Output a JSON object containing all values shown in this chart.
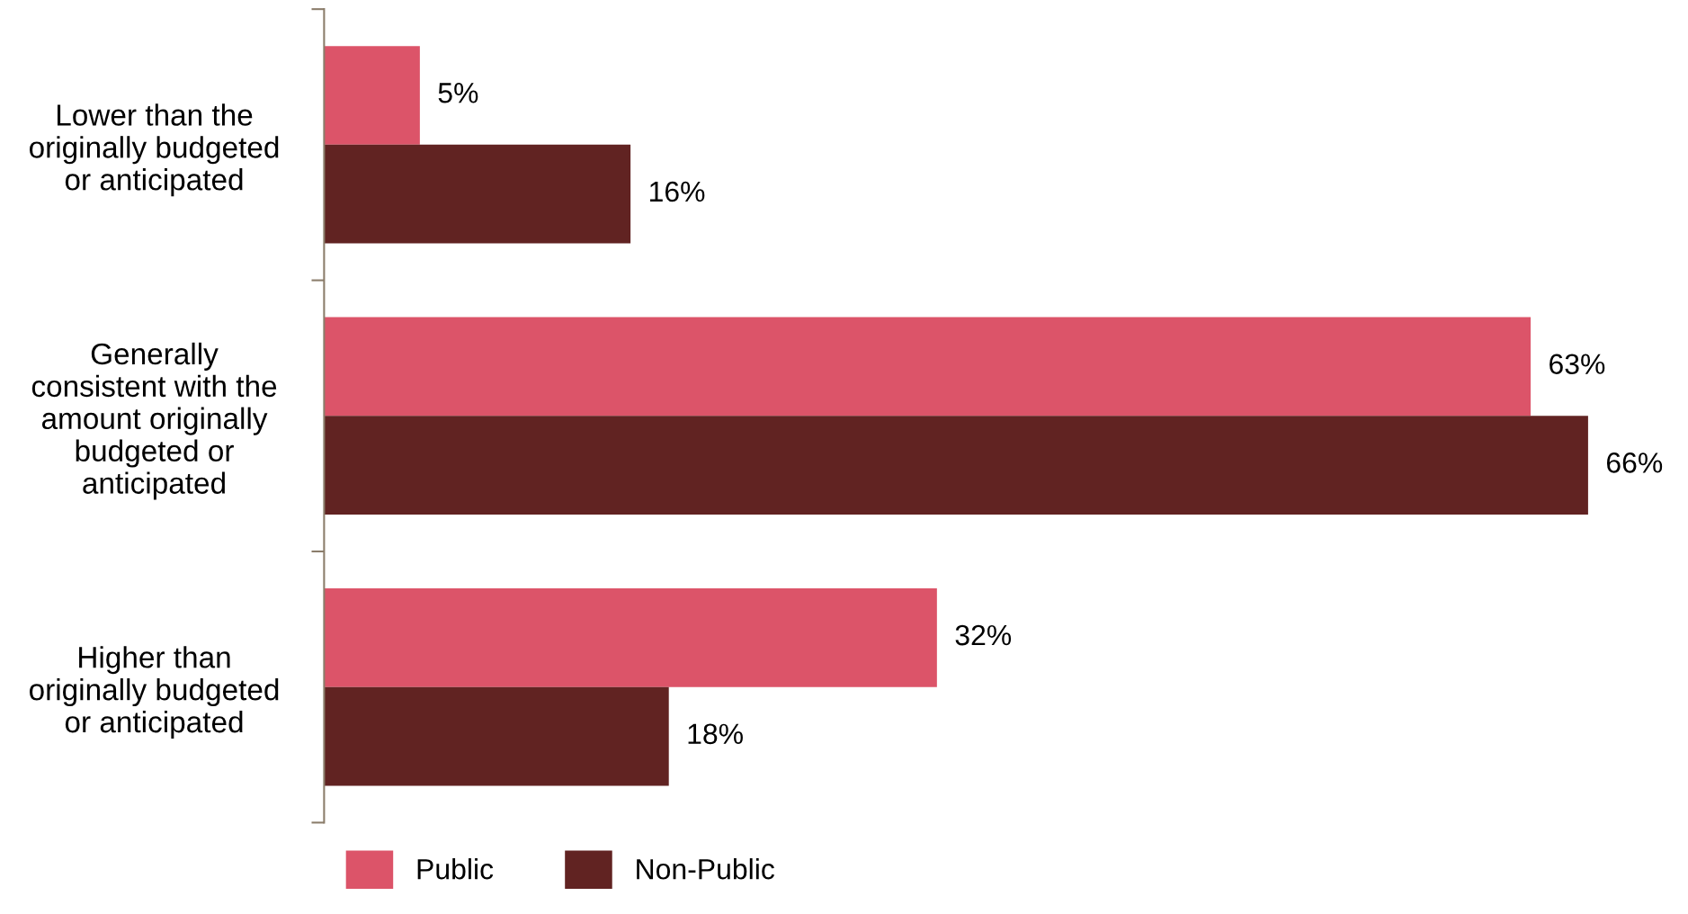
{
  "chart_data": {
    "type": "bar",
    "orientation": "horizontal",
    "categories": [
      "Lower than the\noriginally budgeted\nor anticipated",
      "Generally\nconsistent with the\namount originally\nbudgeted or\nanticipated",
      "Higher than\noriginally budgeted\nor anticipated"
    ],
    "series": [
      {
        "name": "Public",
        "color": "#dc5469",
        "values": [
          5,
          63,
          32
        ],
        "value_labels": [
          "5%",
          "63%",
          "32%"
        ]
      },
      {
        "name": "Non-Public",
        "color": "#612322",
        "values": [
          16,
          66,
          18
        ],
        "value_labels": [
          "16%",
          "66%",
          "18%"
        ]
      }
    ],
    "legend": "bottom",
    "grid": false
  }
}
